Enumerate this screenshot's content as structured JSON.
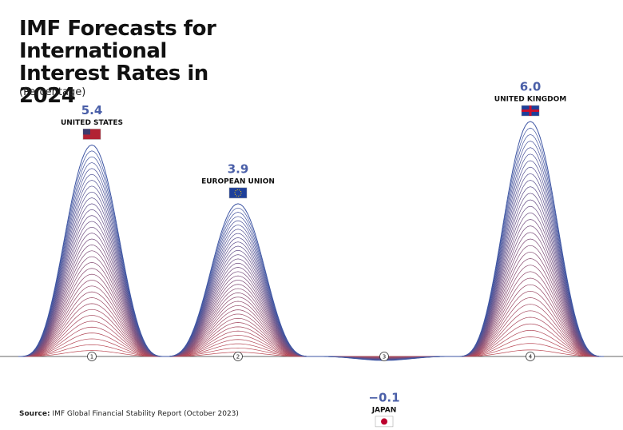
{
  "chart_data": {
    "type": "bell",
    "title": "IMF Forecasts for International Interest Rates in 2024",
    "subtitle": "(Percentage)",
    "categories": [
      "UNITED STATES",
      "EUROPEAN UNION",
      "JAPAN",
      "UNITED KINGDOM"
    ],
    "index_labels": [
      "1",
      "2",
      "3",
      "4"
    ],
    "values": [
      5.4,
      3.9,
      -0.1,
      6.0
    ],
    "value_labels": [
      "5.4",
      "3.9",
      "−0.1",
      "6.0"
    ],
    "colors": {
      "top": "#3d55a3",
      "bottom": "#c0474f"
    },
    "source_label": "Source:",
    "source": "IMF Global Financial Stability Report (October 2023)"
  }
}
